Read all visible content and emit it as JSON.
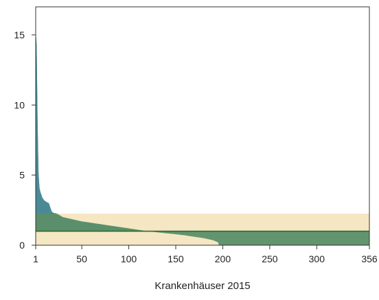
{
  "chart_data": {
    "type": "area",
    "xlabel": "Krankenhäuser 2015",
    "ylabel": "",
    "title": "",
    "xlim": [
      1,
      356
    ],
    "ylim": [
      0,
      17
    ],
    "x_ticks": [
      1,
      50,
      100,
      150,
      200,
      250,
      300,
      356
    ],
    "x_tick_labels": [
      "1",
      "50",
      "100",
      "150",
      "200",
      "250",
      "300",
      "356"
    ],
    "y_ticks": [
      0,
      5,
      10,
      15
    ],
    "y_tick_labels": [
      "0",
      "5",
      "10",
      "15"
    ],
    "reference_line": 1.0,
    "reference_band": [
      0,
      2.25
    ],
    "grid": false,
    "legend": "none",
    "colors": {
      "band_fill": "#f5e6c4",
      "above_reference_top": "#4a8a96",
      "above_reference": "#5b8f6b",
      "below_reference": "#f5e6c4",
      "reference_line": "#2e6b2a",
      "axis": "#333333"
    },
    "series": [
      {
        "x": [
          1,
          2,
          3,
          4,
          5,
          6,
          7,
          8,
          10,
          12,
          15,
          18,
          20,
          25,
          30,
          40,
          50,
          60,
          70,
          80,
          90,
          100,
          110,
          120,
          130,
          140,
          150,
          160,
          170,
          180,
          190,
          195,
          196,
          200,
          250,
          300,
          356
        ],
        "values": [
          15.2,
          14.3,
          8.9,
          5.2,
          4.1,
          3.8,
          3.6,
          3.4,
          3.2,
          3.1,
          3.0,
          2.4,
          2.3,
          2.2,
          2.0,
          1.85,
          1.7,
          1.6,
          1.5,
          1.4,
          1.3,
          1.2,
          1.1,
          1.0,
          0.92,
          0.85,
          0.78,
          0.7,
          0.6,
          0.5,
          0.35,
          0.2,
          0.0,
          0.0,
          0.0,
          0.0,
          0.0
        ]
      }
    ]
  }
}
